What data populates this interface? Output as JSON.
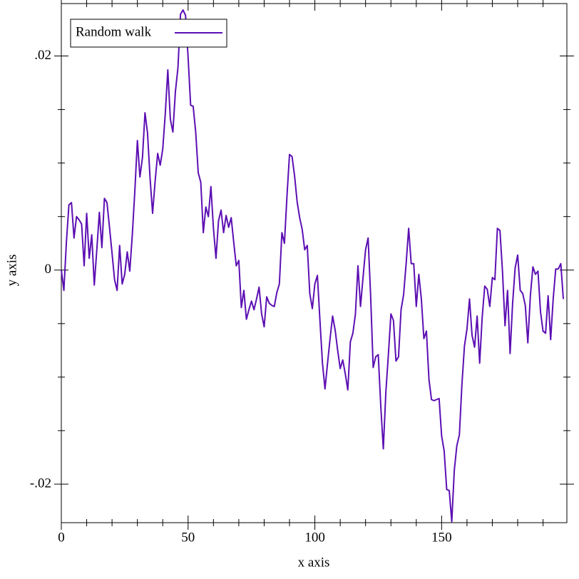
{
  "chart_data": {
    "type": "line",
    "xlabel": "x axis",
    "ylabel": "y axis",
    "x": [
      0,
      1,
      2,
      3,
      4,
      5,
      6,
      7,
      8,
      9,
      10,
      11,
      12,
      13,
      14,
      15,
      16,
      17,
      18,
      19,
      20,
      21,
      22,
      23,
      24,
      25,
      26,
      27,
      28,
      29,
      30,
      31,
      32,
      33,
      34,
      35,
      36,
      37,
      38,
      39,
      40,
      41,
      42,
      43,
      44,
      45,
      46,
      47,
      48,
      49,
      50,
      51,
      52,
      53,
      54,
      55,
      56,
      57,
      58,
      59,
      60,
      61,
      62,
      63,
      64,
      65,
      66,
      67,
      68,
      69,
      70,
      71,
      72,
      73,
      74,
      75,
      76,
      77,
      78,
      79,
      80,
      81,
      82,
      83,
      84,
      85,
      86,
      87,
      88,
      89,
      90,
      91,
      92,
      93,
      94,
      95,
      96,
      97,
      98,
      99,
      100,
      101,
      102,
      103,
      104,
      105,
      106,
      107,
      108,
      109,
      110,
      111,
      112,
      113,
      114,
      115,
      116,
      117,
      118,
      119,
      120,
      121,
      122,
      123,
      124,
      125,
      126,
      127,
      128,
      129,
      130,
      131,
      132,
      133,
      134,
      135,
      136,
      137,
      138,
      139,
      140,
      141,
      142,
      143,
      144,
      145,
      146,
      147,
      148,
      149,
      150,
      151,
      152,
      153,
      154,
      155,
      156,
      157,
      158,
      159,
      160,
      161,
      162,
      163,
      164,
      165,
      166,
      167,
      168,
      169,
      170,
      171,
      172,
      173,
      174,
      175,
      176,
      177,
      178,
      179,
      180,
      181,
      182,
      183,
      184,
      185,
      186,
      187,
      188,
      189,
      190,
      191,
      192,
      193,
      194,
      195,
      196,
      197,
      198
    ],
    "series": [
      {
        "name": "Random walk",
        "color": "#5c0fb3",
        "values": [
          0,
          -0.0019,
          0.0026,
          0.0061,
          0.0063,
          0.003,
          0.005,
          0.0047,
          0.0043,
          0.0004,
          0.0053,
          0.0011,
          0.0033,
          -0.0014,
          0.0019,
          0.0054,
          0.0021,
          0.0067,
          0.0063,
          0.004,
          0.0016,
          -0.0009,
          -0.0019,
          0.0023,
          -0.0013,
          -0.0004,
          0.0017,
          -0.0001,
          0.0033,
          0.0074,
          0.0121,
          0.0087,
          0.0105,
          0.0147,
          0.0128,
          0.0086,
          0.0053,
          0.0083,
          0.0109,
          0.0098,
          0.0113,
          0.0146,
          0.0187,
          0.0141,
          0.0129,
          0.0167,
          0.0189,
          0.0239,
          0.0243,
          0.0238,
          0.0199,
          0.0154,
          0.0153,
          0.0129,
          0.0091,
          0.0082,
          0.0035,
          0.0059,
          0.005,
          0.0078,
          0.0039,
          0.0011,
          0.0046,
          0.0056,
          0.0035,
          0.0051,
          0.004,
          0.0049,
          0.0026,
          0.0004,
          0.0009,
          -0.0035,
          -0.0019,
          -0.0046,
          -0.0037,
          -0.0029,
          -0.0037,
          -0.0027,
          -0.0016,
          -0.0041,
          -0.0053,
          -0.0025,
          -0.0031,
          -0.0033,
          -0.0034,
          -0.0021,
          -0.0013,
          0.0035,
          0.0025,
          0.0069,
          0.0108,
          0.0106,
          0.0088,
          0.0064,
          0.0049,
          0.0038,
          0.0019,
          0.0023,
          -0.0022,
          -0.0036,
          -0.0013,
          -0.0005,
          -0.0047,
          -0.0087,
          -0.0111,
          -0.0087,
          -0.0064,
          -0.0043,
          -0.0056,
          -0.0075,
          -0.0092,
          -0.0084,
          -0.0097,
          -0.0112,
          -0.0067,
          -0.0059,
          -0.0041,
          0.0004,
          -0.0034,
          -0.0007,
          0.0019,
          0.003,
          -0.0024,
          -0.0091,
          -0.0081,
          -0.0079,
          -0.0127,
          -0.0167,
          -0.0114,
          -0.0079,
          -0.0041,
          -0.0047,
          -0.0085,
          -0.0081,
          -0.0037,
          -0.0023,
          0.0006,
          0.0039,
          0.0006,
          0.0006,
          -0.0034,
          -0.0004,
          -0.0027,
          -0.0064,
          -0.0057,
          -0.0102,
          -0.0121,
          -0.0122,
          -0.0121,
          -0.012,
          -0.0155,
          -0.0169,
          -0.0205,
          -0.0206,
          -0.0235,
          -0.0187,
          -0.0164,
          -0.0154,
          -0.0107,
          -0.0071,
          -0.0055,
          -0.0027,
          -0.0061,
          -0.0072,
          -0.0043,
          -0.0087,
          -0.0044,
          -0.0015,
          -0.0018,
          -0.0034,
          -0.0007,
          -0.0009,
          0.0039,
          0.0037,
          -0.0001,
          -0.0052,
          -0.0019,
          -0.0078,
          -0.0031,
          0.0002,
          0.0014,
          -0.0019,
          -0.0022,
          -0.0033,
          -0.0068,
          -0.0024,
          0.0003,
          -0.0004,
          -0.0001,
          -0.0039,
          -0.0057,
          -0.0059,
          -0.0024,
          -0.0065,
          -0.0027,
          0.0001,
          0.0001,
          0.0006,
          -0.0027
        ]
      }
    ],
    "xlim": [
      0,
      199.4
    ],
    "ylim": [
      -0.0236,
      0.0249
    ],
    "xticks": [
      0,
      50,
      100,
      150
    ],
    "xminorticks": [
      10,
      20,
      30,
      40,
      60,
      70,
      80,
      90,
      110,
      120,
      130,
      140,
      160,
      170,
      180,
      190
    ],
    "yticks": [
      {
        "value": -0.02,
        "label": "-.02"
      },
      0,
      {
        "value": 0.02,
        "label": ".02"
      }
    ],
    "yminorticks": [
      -0.015,
      -0.01,
      -0.005,
      0.005,
      0.01,
      0.015
    ],
    "legend": "top-left"
  }
}
